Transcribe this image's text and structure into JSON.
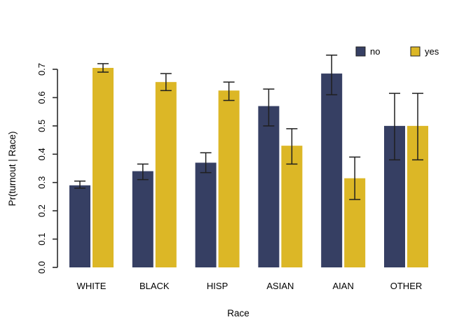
{
  "figure": {
    "background": "#ffffff"
  },
  "chart_data": {
    "type": "bar",
    "title": "",
    "xlabel": "Race",
    "ylabel": "Pr(turnout | Race)",
    "ylim": [
      0,
      0.7
    ],
    "yticks": [
      0.0,
      0.1,
      0.2,
      0.3,
      0.4,
      0.5,
      0.6,
      0.7
    ],
    "categories": [
      "WHITE",
      "BLACK",
      "HISP",
      "ASIAN",
      "AIAN",
      "OTHER"
    ],
    "series": [
      {
        "name": "no",
        "color": "#363F63",
        "values": [
          0.29,
          0.34,
          0.37,
          0.57,
          0.685,
          0.5
        ],
        "ci_low": [
          0.28,
          0.31,
          0.335,
          0.5,
          0.61,
          0.38
        ],
        "ci_high": [
          0.305,
          0.365,
          0.405,
          0.63,
          0.75,
          0.615
        ]
      },
      {
        "name": "yes",
        "color": "#DCB726",
        "values": [
          0.705,
          0.655,
          0.625,
          0.43,
          0.315,
          0.5
        ],
        "ci_low": [
          0.69,
          0.625,
          0.59,
          0.365,
          0.24,
          0.38
        ],
        "ci_high": [
          0.72,
          0.685,
          0.655,
          0.49,
          0.39,
          0.615
        ]
      }
    ],
    "legend": {
      "position": "top-right",
      "entries": [
        "no",
        "yes"
      ]
    },
    "grid": false,
    "error_bar_color": "#1f1f1f",
    "axis_color": "#2a2a2a",
    "text_color": "#000000"
  }
}
